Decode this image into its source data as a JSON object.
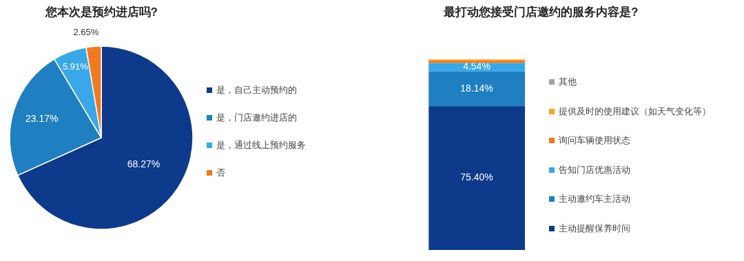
{
  "chart_data": [
    {
      "type": "pie",
      "title": "您本次是预约进店吗?",
      "categories": [
        "是，自己主动预约的",
        "是，门店邀约进店的",
        "是，通过线上预约服务",
        "否"
      ],
      "values": [
        68.27,
        23.17,
        5.91,
        2.65
      ],
      "colors": [
        "#0d3a8a",
        "#1f7fc0",
        "#3aa8e8",
        "#f07a20"
      ],
      "value_labels": [
        "68.27%",
        "23.17%",
        "5.91%",
        "2.65%"
      ],
      "legend": "right"
    },
    {
      "type": "bar",
      "title": "最打动您接受门店邀约的服务内容是?",
      "categories": [
        null
      ],
      "stacked": true,
      "legend": "right",
      "ylim": [
        0,
        100
      ],
      "series": [
        {
          "name": "主动提醒保养时间",
          "color": "#0d3a8a",
          "values": [
            75.4
          ],
          "value_labels": [
            "75.40%"
          ]
        },
        {
          "name": "主动邀约车主活动",
          "color": "#1f7fc0",
          "values": [
            18.14
          ],
          "value_labels": [
            "18.14%"
          ]
        },
        {
          "name": "告知门店优惠活动",
          "color": "#3aa8e8",
          "values": [
            4.54
          ],
          "value_labels": [
            "4.54%"
          ]
        },
        {
          "name": "询问车辆使用状态",
          "color": "#f07a20",
          "values": [
            1.3
          ],
          "value_labels": [
            null
          ]
        },
        {
          "name": "提供及时的使用建议（如天气变化等）",
          "color": "#f5a623",
          "values": [
            0.55
          ],
          "value_labels": [
            null
          ]
        },
        {
          "name": "其他",
          "color": "#a5a5a5",
          "values": [
            null
          ],
          "value_labels": [
            null
          ]
        }
      ]
    }
  ]
}
